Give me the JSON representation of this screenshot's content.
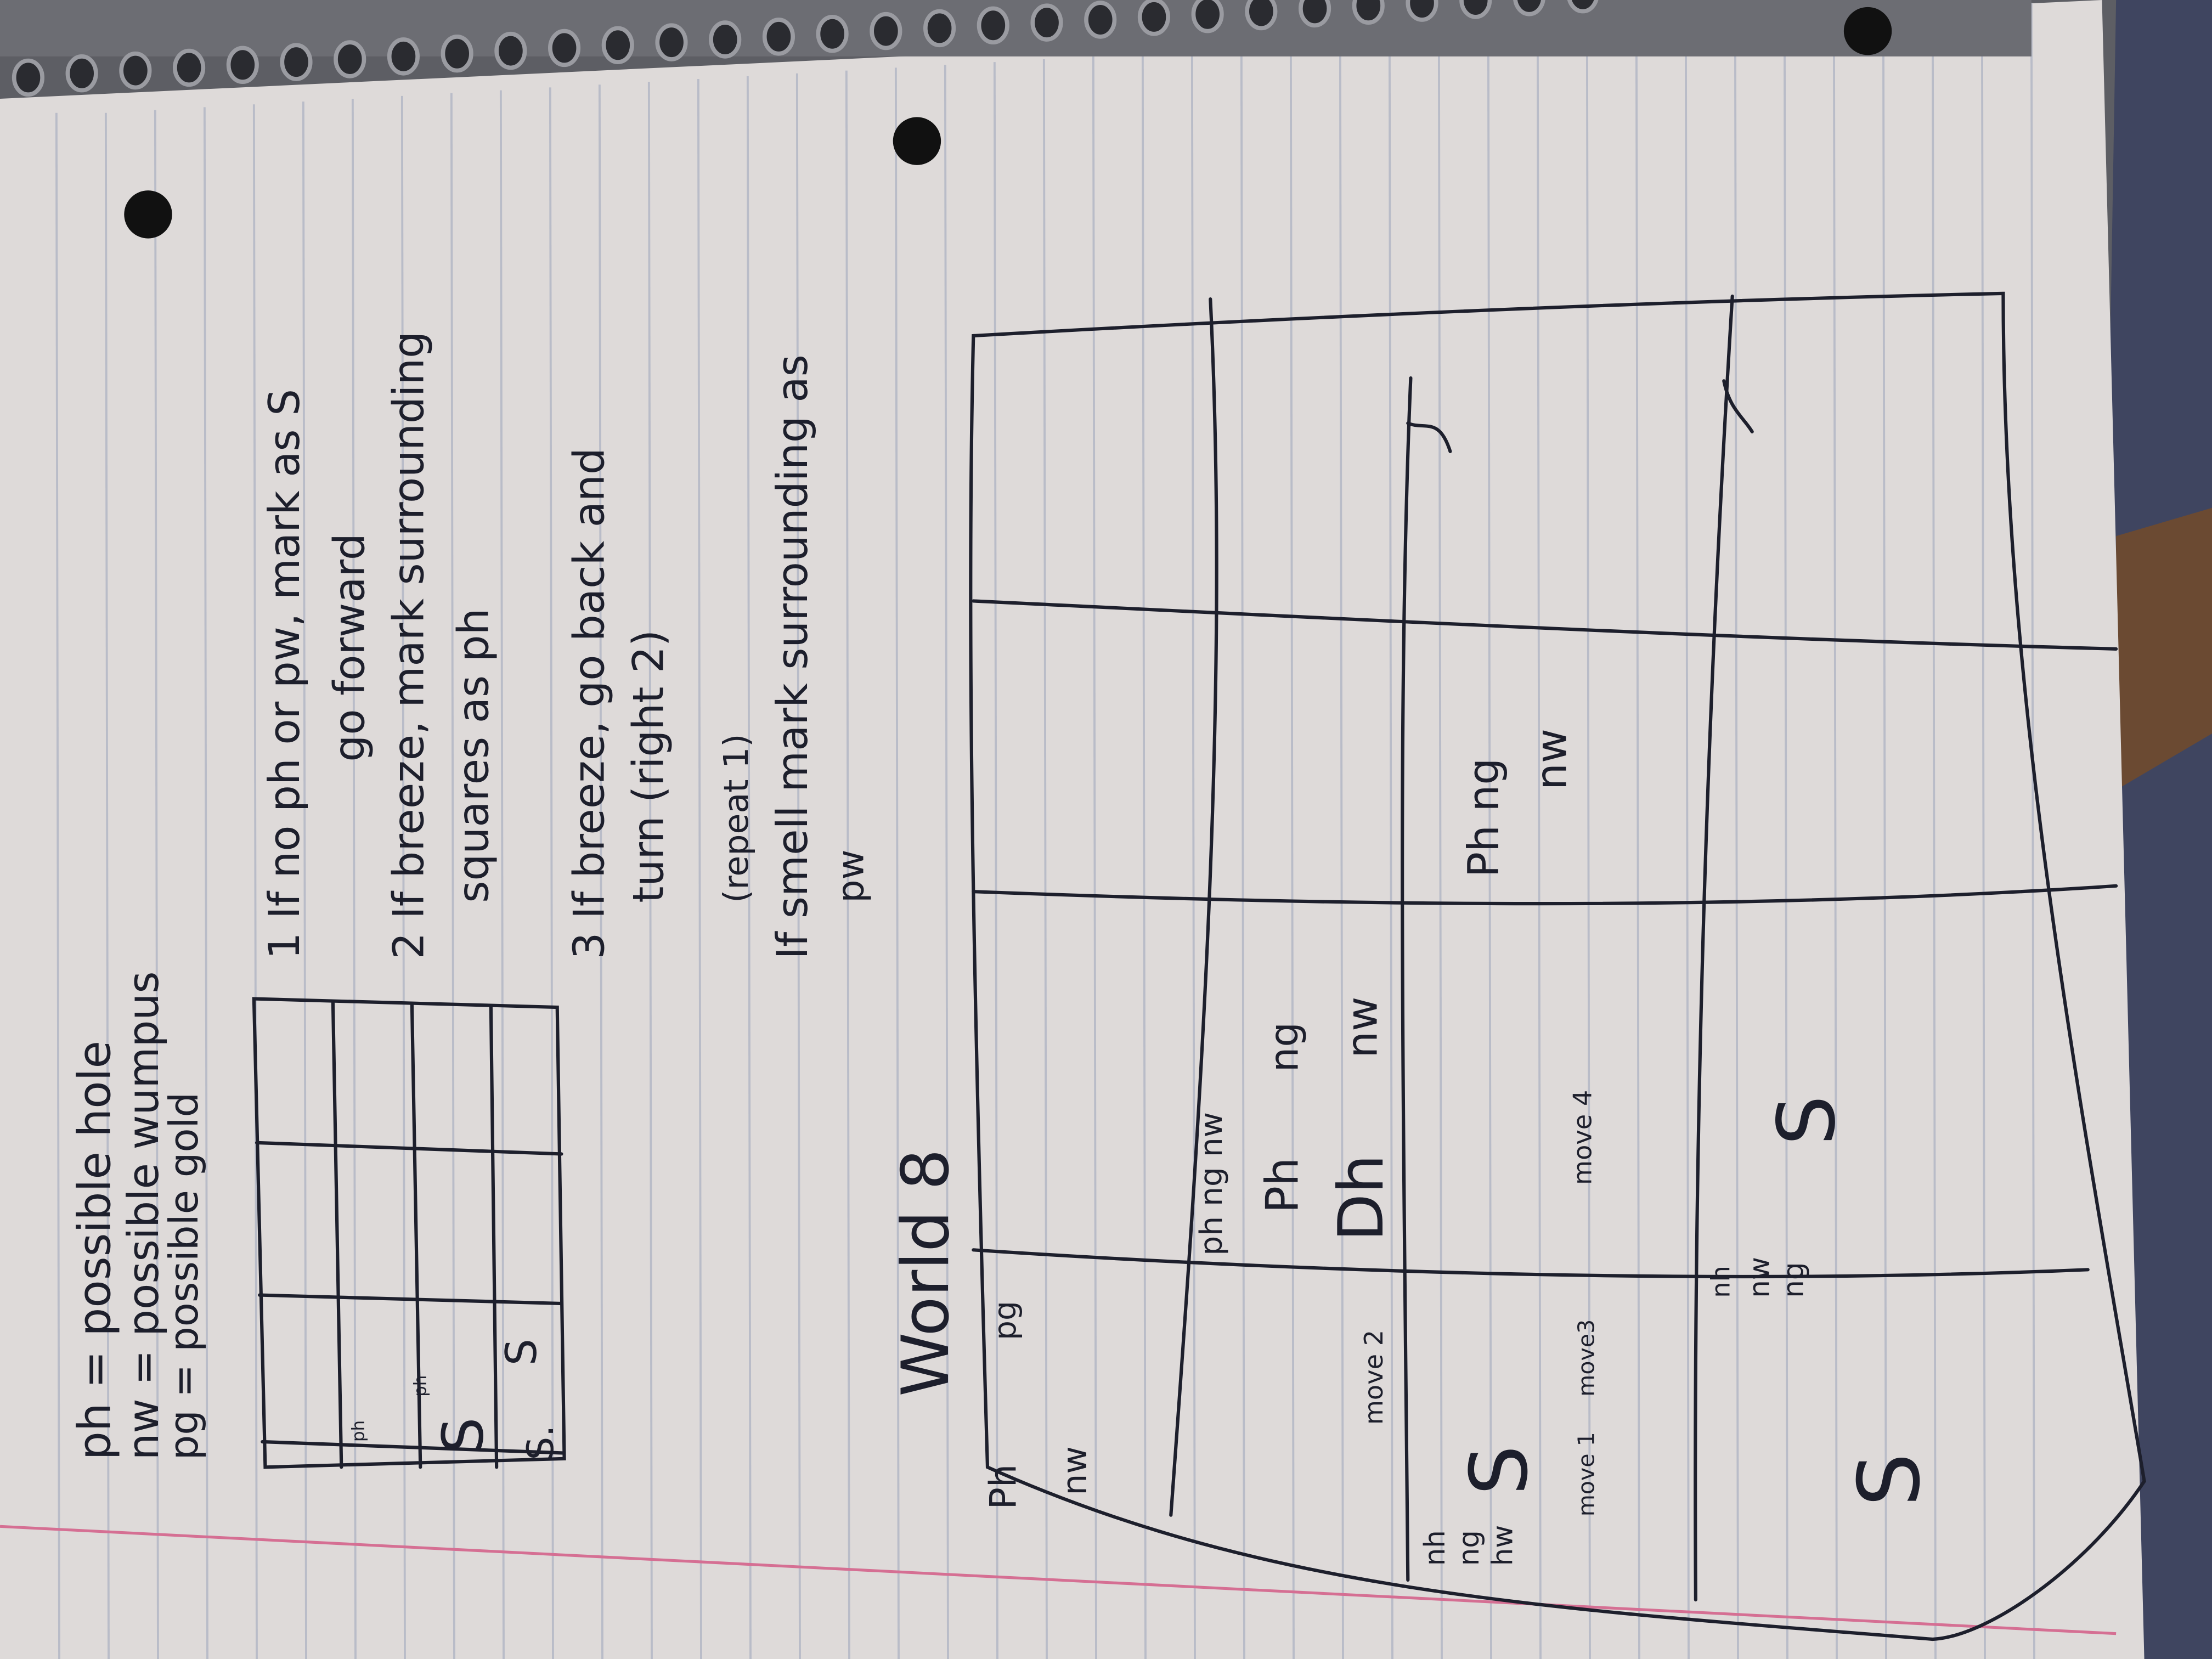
{
  "legend": {
    "ph": "ph = possible hole",
    "nw": "nw = possible wumpus",
    "pg": "pg = possible gold"
  },
  "rules": {
    "r1a": "1  If no ph or pw, mark as S",
    "r1b": "go forward",
    "r2a": "2  If breeze, mark surrounding",
    "r2b": "squares as ph",
    "r3a": "3  If breeze, go back and",
    "r3b": "turn (right 2)",
    "r4a": "(repeat 1)",
    "r4b": "If smell mark surrounding as",
    "r4c": "pw"
  },
  "small_grid": {
    "ph_top": "ph",
    "ph_mid": "ph",
    "s1": "S",
    "s2": "S.",
    "s3": "S"
  },
  "world": {
    "title": "World 8",
    "c_ph": "Ph",
    "c_pg": "pg",
    "c_nw": "nw",
    "m_phng": "ph ng nw",
    "m_ph2": "Ph",
    "m_ng": "ng",
    "m_dh": "Dh",
    "m_nw": "nw",
    "move2": "move 2",
    "lm_nh": "nh",
    "lm_ng": "ng",
    "lm_hw": "hw",
    "lm_s": "S",
    "move1": "move 1",
    "move3": "move3",
    "move4": "move 4",
    "rm_ph": "Ph ng",
    "rm_nw": "nw",
    "b_nh": "nh",
    "b_nw": "nw",
    "b_ng": "ng",
    "b_s": "S",
    "b_s2": "S"
  },
  "colors": {
    "paper": "#dedad9",
    "ink": "#1d1f2c",
    "margin_line": "#d56f93",
    "rule_line": "#b9bcc8",
    "background": "#5d5e64"
  }
}
